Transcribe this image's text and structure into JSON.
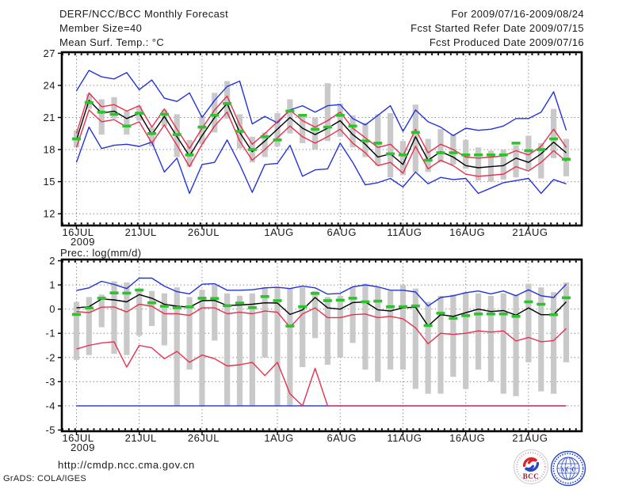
{
  "header": {
    "title": "DERF/NCC/BCC Monthly Forecast",
    "member_size": "Member Size=40",
    "for_range": "For 2009/07/16-2009/08/24",
    "fcst_started": "Fcst Started Refer Date 2009/07/15",
    "fcst_produced": "Fcst Produced Date 2009/07/16"
  },
  "colors": {
    "blue": "#2233dd",
    "red": "#e8304e",
    "green": "#2cc42c",
    "black": "#000000",
    "bar_gray": "#c9c9c9",
    "grid": "#777777",
    "axis": "#000000"
  },
  "x_axis": {
    "n_days": 40,
    "ticks": [
      {
        "day": 0,
        "label": "16JUL",
        "sublabel": "2009"
      },
      {
        "day": 5,
        "label": "21JUL"
      },
      {
        "day": 10,
        "label": "26JUL"
      },
      {
        "day": 16,
        "label": "1AUG"
      },
      {
        "day": 21,
        "label": "6AUG"
      },
      {
        "day": 26,
        "label": "11AUG"
      },
      {
        "day": 31,
        "label": "16AUG"
      },
      {
        "day": 36,
        "label": "21AUG"
      }
    ]
  },
  "chart_data": [
    {
      "type": "line",
      "title": "Mean Surf. Temp.: °C",
      "ylim": [
        10.9,
        27.1
      ],
      "yticks": [
        12,
        15,
        18,
        21,
        24,
        27
      ],
      "grid": "dotted",
      "legend": "none",
      "series": [
        {
          "name": "spread-bar",
          "type": "bar",
          "color": "#c9c9c9",
          "low": [
            18.2,
            21.8,
            19.4,
            20.9,
            19.4,
            20.7,
            18.3,
            20.2,
            17.3,
            16.4,
            18.5,
            19.6,
            20.9,
            18.1,
            16.8,
            17.3,
            18.3,
            19.5,
            18.6,
            18.0,
            18.8,
            19.2,
            18.2,
            17.3,
            16.5,
            15.4,
            15.6,
            15.9,
            15.9,
            16.8,
            16.6,
            16.2,
            15.1,
            15.0,
            15.2,
            15.4,
            16.1,
            15.3,
            17.2,
            15.5
          ],
          "high": [
            19.8,
            23.2,
            22.7,
            22.9,
            21.6,
            22.1,
            20.1,
            21.7,
            21.3,
            18.9,
            21.1,
            23.3,
            24.4,
            21.3,
            19.2,
            19.6,
            21.4,
            22.7,
            21.3,
            21.0,
            24.2,
            22.3,
            21.2,
            20.5,
            21.3,
            21.4,
            18.8,
            22.2,
            19.0,
            19.9,
            19.4,
            18.9,
            18.2,
            17.9,
            18.0,
            18.4,
            19.3,
            18.6,
            21.8,
            19.0
          ]
        },
        {
          "name": "ensemble-max",
          "type": "line",
          "color": "#2233dd",
          "values": [
            23.5,
            25.4,
            24.8,
            24.6,
            25.2,
            23.6,
            24.5,
            22.8,
            22.5,
            23.3,
            21.0,
            22.6,
            23.9,
            24.4,
            20.4,
            21.1,
            20.5,
            21.7,
            22.1,
            21.5,
            22.1,
            22.2,
            20.9,
            20.3,
            21.2,
            22.1,
            19.7,
            21.7,
            20.6,
            20.1,
            19.3,
            20.0,
            19.8,
            19.9,
            20.2,
            20.9,
            20.9,
            21.5,
            23.4,
            19.8
          ]
        },
        {
          "name": "ensemble-min",
          "type": "line",
          "color": "#2233dd",
          "values": [
            16.8,
            20.1,
            18.1,
            18.4,
            18.5,
            18.3,
            18.7,
            15.9,
            17.2,
            13.9,
            16.6,
            16.8,
            18.9,
            16.6,
            14.0,
            16.6,
            16.7,
            18.4,
            15.5,
            16.1,
            16.2,
            18.6,
            16.8,
            14.7,
            14.9,
            15.3,
            14.5,
            15.9,
            14.8,
            15.4,
            15.2,
            15.3,
            13.9,
            14.4,
            14.9,
            15.1,
            15.3,
            13.9,
            15.2,
            14.8
          ]
        },
        {
          "name": "upper-percentile",
          "type": "line",
          "color": "#e8304e",
          "values": [
            19.5,
            23.3,
            22.0,
            22.2,
            21.6,
            22.1,
            20.1,
            21.8,
            19.9,
            18.1,
            20.0,
            21.7,
            23.0,
            20.3,
            18.5,
            19.5,
            20.6,
            21.7,
            20.7,
            20.1,
            20.7,
            21.5,
            20.0,
            19.1,
            18.2,
            18.5,
            17.4,
            19.9,
            17.7,
            18.5,
            18.0,
            17.3,
            17.2,
            17.3,
            17.4,
            17.9,
            17.5,
            18.3,
            19.9,
            18.2
          ]
        },
        {
          "name": "lower-percentile",
          "type": "line",
          "color": "#e8304e",
          "values": [
            18.2,
            21.7,
            20.6,
            20.8,
            20.1,
            20.6,
            18.6,
            20.3,
            18.4,
            16.4,
            18.5,
            20.2,
            21.5,
            18.8,
            17.0,
            18.0,
            19.1,
            20.2,
            19.2,
            18.6,
            19.2,
            19.9,
            18.6,
            17.7,
            16.5,
            16.8,
            15.8,
            18.3,
            16.2,
            17.0,
            16.5,
            15.7,
            15.5,
            15.6,
            15.7,
            16.4,
            16.0,
            16.8,
            17.9,
            16.9
          ]
        },
        {
          "name": "ensemble-mean",
          "type": "line",
          "color": "#000000",
          "values": [
            18.9,
            22.6,
            21.4,
            21.6,
            20.9,
            21.4,
            19.4,
            21.1,
            19.2,
            17.4,
            19.3,
            21.0,
            22.3,
            19.6,
            17.8,
            18.8,
            19.9,
            21.0,
            20.0,
            19.4,
            20.0,
            20.7,
            19.4,
            18.5,
            17.3,
            17.6,
            16.6,
            19.2,
            17.0,
            17.8,
            17.3,
            16.5,
            16.3,
            16.4,
            16.5,
            17.2,
            16.8,
            17.6,
            18.7,
            17.7
          ]
        },
        {
          "name": "observation-dash",
          "type": "dash",
          "color": "#2cc42c",
          "values": [
            19.0,
            22.4,
            21.5,
            21.3,
            20.2,
            21.4,
            19.5,
            21.3,
            19.4,
            17.5,
            20.1,
            21.2,
            22.3,
            19.7,
            18.0,
            19.2,
            18.9,
            21.6,
            21.2,
            19.9,
            20.1,
            21.2,
            20.2,
            18.8,
            18.6,
            17.6,
            17.5,
            19.6,
            17.0,
            17.7,
            17.7,
            17.5,
            17.5,
            17.5,
            17.5,
            18.6,
            17.9,
            18.0,
            19.0,
            17.1
          ]
        }
      ]
    },
    {
      "type": "line",
      "title": "Prec.: log(mm/d)",
      "ylim": [
        -5.05,
        2.05
      ],
      "yticks": [
        -5,
        -4,
        -3,
        -2,
        -1,
        0,
        1,
        2
      ],
      "grid": "dotted",
      "legend": "none",
      "series": [
        {
          "name": "spread-bar",
          "type": "bar",
          "color": "#c9c9c9",
          "low": [
            -2.1,
            -1.9,
            -0.75,
            -1.85,
            -1.9,
            -1.1,
            -0.7,
            -1.5,
            -4.0,
            -2.5,
            -4.0,
            -1.3,
            -4.0,
            -4.0,
            -4.0,
            -2.0,
            -4.0,
            -4.0,
            -2.4,
            -1.2,
            -2.3,
            -2.0,
            -1.4,
            -2.5,
            -3.0,
            -2.5,
            -2.5,
            -3.3,
            -3.5,
            -3.5,
            -2.8,
            -3.3,
            -2.5,
            -3.0,
            -3.5,
            -3.6,
            -2.2,
            -3.4,
            -3.5,
            -2.2
          ],
          "high": [
            0.3,
            0.5,
            0.6,
            1.15,
            1.1,
            0.75,
            0.75,
            0.65,
            0.9,
            0.5,
            0.8,
            1.0,
            0.65,
            0.55,
            0.65,
            0.9,
            0.9,
            0.85,
            0.9,
            0.75,
            0.5,
            0.55,
            0.9,
            1.05,
            0.9,
            0.75,
            1.0,
            0.85,
            0.3,
            0.55,
            0.6,
            0.7,
            0.65,
            0.55,
            0.65,
            0.6,
            1.05,
            0.9,
            0.7,
            1.1
          ]
        },
        {
          "name": "ensemble-max",
          "type": "line",
          "color": "#2233dd",
          "values": [
            0.77,
            0.88,
            1.15,
            1.02,
            0.85,
            1.28,
            1.28,
            0.95,
            0.72,
            0.63,
            1.03,
            1.05,
            0.78,
            0.78,
            0.8,
            0.88,
            0.9,
            0.85,
            0.95,
            0.88,
            0.62,
            0.65,
            0.92,
            1.0,
            0.92,
            0.78,
            0.78,
            0.71,
            0.13,
            0.48,
            0.55,
            0.68,
            0.75,
            0.63,
            0.75,
            0.55,
            0.8,
            0.55,
            0.48,
            1.03
          ]
        },
        {
          "name": "ensemble-min",
          "type": "line",
          "color": "#2233dd",
          "values": [
            -4.0,
            -4.0,
            -4.0,
            -4.0,
            -4.0,
            -4.0,
            -4.0,
            -4.0,
            -4.0,
            -4.0,
            -4.0,
            -4.0,
            -4.0,
            -4.0,
            -4.0,
            -4.0,
            -4.0,
            -4.0,
            -4.0,
            -4.0,
            -4.0,
            -4.0,
            -4.0,
            -4.0,
            -4.0,
            -4.0,
            -4.0,
            -4.0,
            -4.0,
            -4.0,
            -4.0,
            -4.0,
            -4.0,
            -4.0,
            -4.0,
            -4.0,
            -4.0,
            -4.0,
            -4.0,
            -4.0
          ]
        },
        {
          "name": "upper-percentile",
          "type": "line",
          "color": "#e8304e",
          "values": [
            -0.1,
            -0.15,
            0.08,
            0.09,
            -0.12,
            0.2,
            0.12,
            -0.19,
            -0.19,
            -0.26,
            0.05,
            0.05,
            -0.19,
            -0.13,
            -0.19,
            -0.08,
            -0.13,
            -0.75,
            -0.2,
            0.05,
            -0.35,
            -0.35,
            -0.23,
            -0.2,
            -0.35,
            -0.3,
            -0.4,
            -0.77,
            -1.43,
            -1.0,
            -1.05,
            -1.0,
            -0.9,
            -0.95,
            -0.9,
            -1.32,
            -1.17,
            -1.35,
            -1.3,
            -0.8
          ]
        },
        {
          "name": "lower-percentile",
          "type": "line",
          "color": "#e8304e",
          "values": [
            -1.65,
            -1.5,
            -1.4,
            -1.35,
            -2.4,
            -1.5,
            -1.6,
            -2.05,
            -1.75,
            -2.2,
            -1.9,
            -2.05,
            -2.35,
            -2.3,
            -2.2,
            -2.75,
            -2.2,
            -3.5,
            -4.0,
            -2.45,
            -4.0,
            -4.0,
            -4.0,
            -4.0,
            -4.0,
            -4.0,
            -4.0,
            -4.0,
            -4.0,
            -4.0,
            -4.0,
            -4.0,
            -4.0,
            -4.0,
            -4.0,
            -4.0,
            -4.0,
            -4.0,
            -4.0,
            -4.0
          ]
        },
        {
          "name": "ensemble-mean",
          "type": "line",
          "color": "#000000",
          "values": [
            0.05,
            0.1,
            0.42,
            0.38,
            0.3,
            0.6,
            0.45,
            0.2,
            0.12,
            0.08,
            0.35,
            0.36,
            0.15,
            0.17,
            0.2,
            0.26,
            0.25,
            -0.22,
            -0.03,
            0.48,
            0.05,
            0.0,
            0.27,
            0.3,
            -0.03,
            -0.08,
            0.05,
            0.08,
            -0.7,
            -0.23,
            -0.3,
            -0.15,
            0.0,
            -0.1,
            -0.06,
            -0.25,
            0.05,
            -0.23,
            -0.23,
            0.3
          ]
        },
        {
          "name": "observation-dash",
          "type": "dash",
          "color": "#2cc42c",
          "values": [
            -0.22,
            0.05,
            0.45,
            0.67,
            0.66,
            0.79,
            0.26,
            0.12,
            0.06,
            0.09,
            0.45,
            0.44,
            0.14,
            0.25,
            0.06,
            0.52,
            0.35,
            -0.7,
            0.1,
            0.65,
            0.35,
            0.37,
            0.45,
            0.3,
            0.33,
            0.1,
            0.1,
            0.13,
            -0.68,
            -0.17,
            -0.38,
            -0.27,
            -0.2,
            -0.2,
            -0.2,
            -0.3,
            0.3,
            0.2,
            -0.23,
            0.47
          ]
        }
      ]
    }
  ],
  "footer": {
    "url": "http://cmdp.ncc.cma.gov.cn",
    "credit": "GrADS: COLA/IGES",
    "bcc_label": "BCC",
    "ncc_label": "NCC"
  }
}
